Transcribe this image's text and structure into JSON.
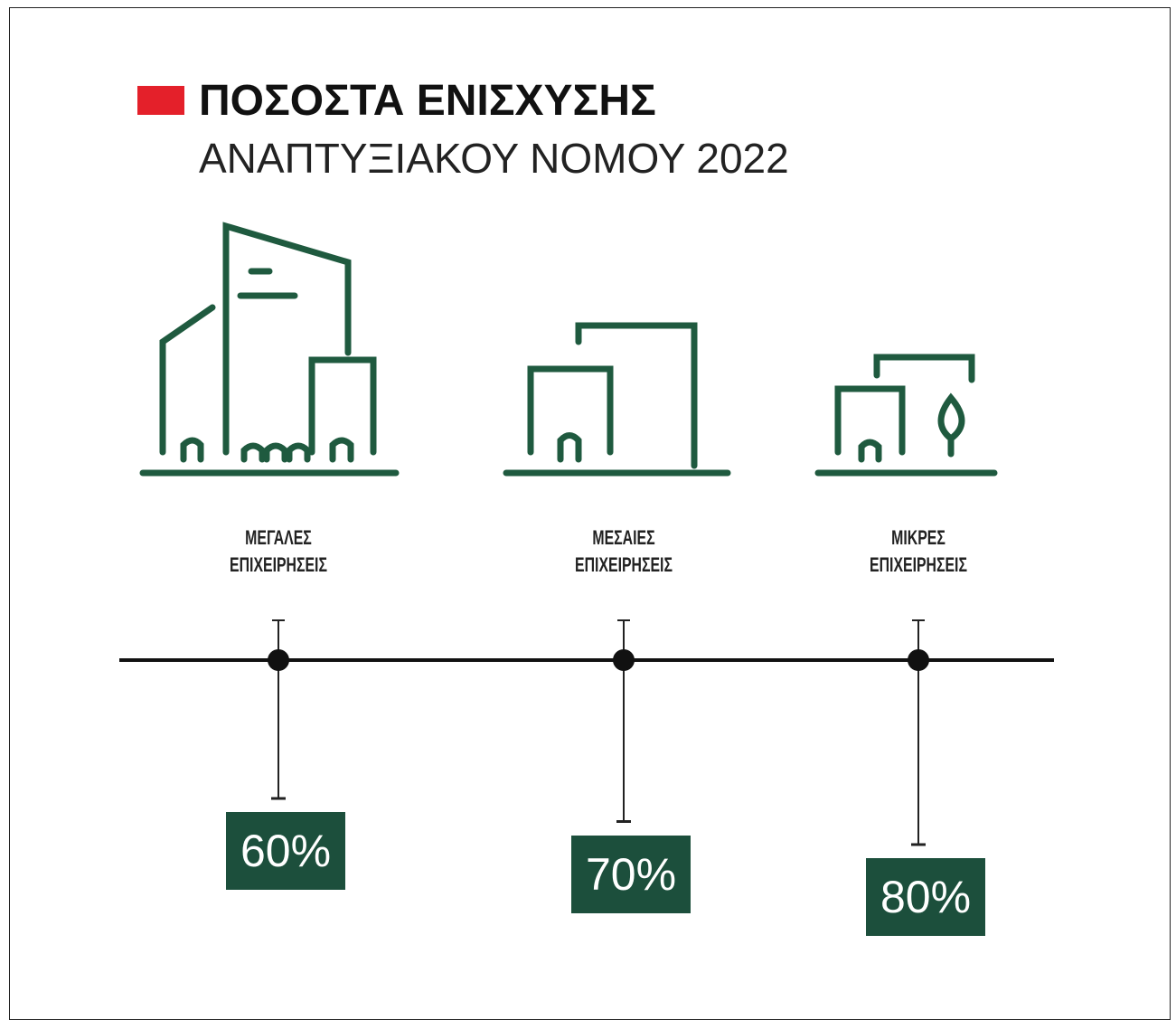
{
  "chart_data": {
    "type": "drop",
    "title": "ΠΟΣΟΣΤΑ ΕΝΙΣΧΥΣΗΣ",
    "subtitle": "ΑΝΑΠΤΥΞΙΑΚΟΥ ΝΟΜΟΥ 2022",
    "categories": [
      "ΜΕΓΑΛΕΣ ΕΠΙΧΕΙΡΗΣΕΙΣ",
      "ΜΕΣΑΙΕΣ ΕΠΙΧΕΙΡΗΣΕΙΣ",
      "ΜΙΚΡΕΣ ΕΠΙΧΕΙΡΗΣΕΙΣ"
    ],
    "values": [
      60,
      70,
      80
    ],
    "value_labels": [
      "60%",
      "70%",
      "80%"
    ],
    "color": "#1c4f3c"
  }
}
